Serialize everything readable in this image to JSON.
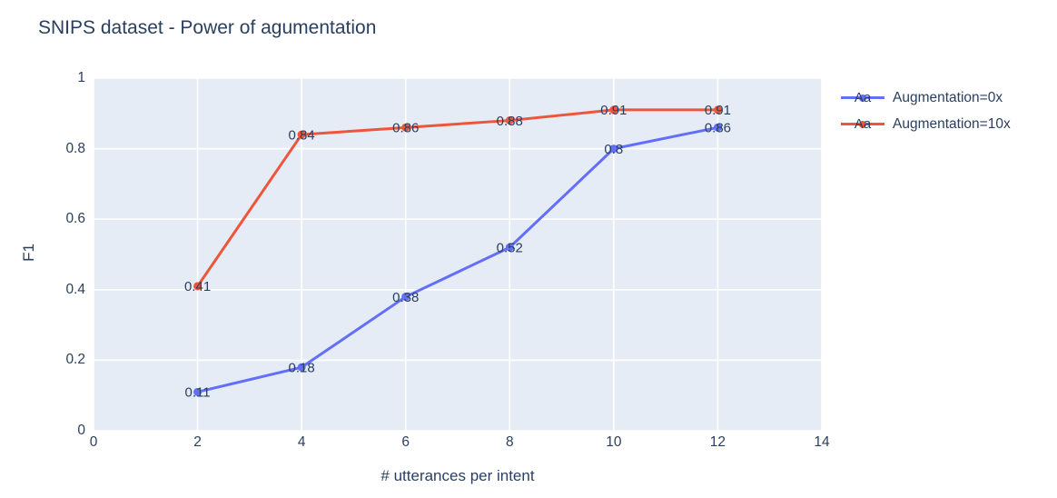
{
  "chart_data": {
    "type": "line",
    "title": "SNIPS dataset - Power of agumentation",
    "xlabel": "# utterances per intent",
    "ylabel": "F1",
    "xlim": [
      0,
      14
    ],
    "ylim": [
      0,
      1
    ],
    "xticks": [
      0,
      2,
      4,
      6,
      8,
      10,
      12,
      14
    ],
    "yticks": [
      0,
      0.2,
      0.4,
      0.6,
      0.8,
      1
    ],
    "grid": true,
    "legend_position": "top-right",
    "legend_glyph": "Aa",
    "x": [
      2,
      4,
      6,
      8,
      10,
      12
    ],
    "series": [
      {
        "name": "Augmentation=0x",
        "color": "#636efa",
        "values": [
          0.11,
          0.18,
          0.38,
          0.52,
          0.8,
          0.86
        ],
        "labels": [
          "0.11",
          "0.18",
          "0.38",
          "0.52",
          "0.8",
          "0.86"
        ]
      },
      {
        "name": "Augmentation=10x",
        "color": "#ef553b",
        "values": [
          0.41,
          0.84,
          0.86,
          0.88,
          0.91,
          0.91
        ],
        "labels": [
          "0.41",
          "0.84",
          "0.86",
          "0.88",
          "0.91",
          "0.91"
        ]
      }
    ],
    "colors": {
      "plot_bg": "#e5ecf6",
      "grid": "#ffffff",
      "text": "#2a3f5f",
      "title": "#2a3f5f"
    }
  }
}
